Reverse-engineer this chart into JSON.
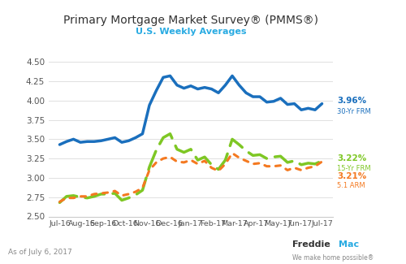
{
  "title": "Primary Mortgage Market Survey® (PMMS®)",
  "subtitle": "U.S. Weekly Averages",
  "subtitle_color": "#29abe2",
  "background_color": "#ffffff",
  "ylim": [
    2.5,
    4.55
  ],
  "yticks": [
    2.5,
    2.75,
    3.0,
    3.25,
    3.5,
    3.75,
    4.0,
    4.25,
    4.5
  ],
  "xlabel_bottom": "As of July 6, 2017",
  "xtick_labels": [
    "Jul-16",
    "Aug-16",
    "Sep-16",
    "Oct-16",
    "Nov-16",
    "Dec-16",
    "Jan-17",
    "Feb-17",
    "Mar-17",
    "Apr-17",
    "May-17",
    "Jun-17",
    "Jul-17"
  ],
  "label_30yr_pct": "3.96%",
  "label_30yr_name": "30-Yr FRM",
  "label_15yr_pct": "3.22%",
  "label_15yr_name": "15-Yr FRM",
  "label_arm_pct": "3.21%",
  "label_arm_name": "5.1 ARM",
  "color_30yr": "#1a6fbd",
  "color_15yr": "#7ec724",
  "color_arm": "#f47920",
  "series_30yr": [
    3.43,
    3.47,
    3.5,
    3.46,
    3.47,
    3.47,
    3.48,
    3.5,
    3.52,
    3.46,
    3.48,
    3.52,
    3.57,
    3.94,
    4.13,
    4.3,
    4.32,
    4.2,
    4.16,
    4.19,
    4.15,
    4.17,
    4.15,
    4.1,
    4.2,
    4.32,
    4.2,
    4.1,
    4.05,
    4.05,
    3.98,
    3.99,
    4.03,
    3.95,
    3.96,
    3.88,
    3.9,
    3.88,
    3.96
  ],
  "series_15yr": [
    2.68,
    2.76,
    2.77,
    2.75,
    2.74,
    2.76,
    2.79,
    2.79,
    2.8,
    2.71,
    2.74,
    2.78,
    2.84,
    3.14,
    3.36,
    3.52,
    3.57,
    3.37,
    3.33,
    3.37,
    3.23,
    3.27,
    3.17,
    3.11,
    3.23,
    3.5,
    3.43,
    3.35,
    3.29,
    3.3,
    3.25,
    3.27,
    3.28,
    3.2,
    3.22,
    3.17,
    3.19,
    3.18,
    3.22
  ],
  "series_arm": [
    2.69,
    2.74,
    2.74,
    2.76,
    2.76,
    2.79,
    2.8,
    2.81,
    2.83,
    2.77,
    2.79,
    2.82,
    2.87,
    3.1,
    3.2,
    3.25,
    3.27,
    3.21,
    3.2,
    3.23,
    3.18,
    3.22,
    3.13,
    3.09,
    3.18,
    3.32,
    3.26,
    3.22,
    3.18,
    3.19,
    3.15,
    3.15,
    3.16,
    3.1,
    3.13,
    3.1,
    3.13,
    3.15,
    3.21
  ]
}
